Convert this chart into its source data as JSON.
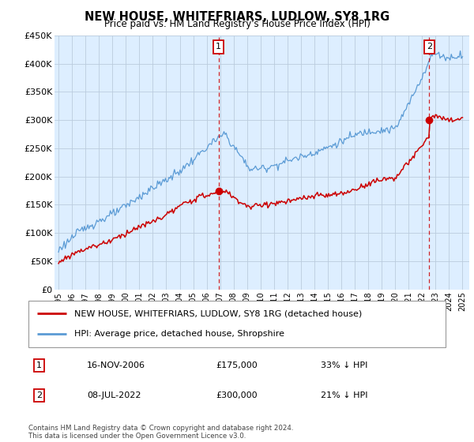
{
  "title": "NEW HOUSE, WHITEFRIARS, LUDLOW, SY8 1RG",
  "subtitle": "Price paid vs. HM Land Registry's House Price Index (HPI)",
  "legend_line1": "NEW HOUSE, WHITEFRIARS, LUDLOW, SY8 1RG (detached house)",
  "legend_line2": "HPI: Average price, detached house, Shropshire",
  "footer": "Contains HM Land Registry data © Crown copyright and database right 2024.\nThis data is licensed under the Open Government Licence v3.0.",
  "transaction1_date": "16-NOV-2006",
  "transaction1_price": "£175,000",
  "transaction1_hpi": "33% ↓ HPI",
  "transaction1_year": 2006.88,
  "transaction1_value": 175000,
  "transaction2_date": "08-JUL-2022",
  "transaction2_price": "£300,000",
  "transaction2_hpi": "21% ↓ HPI",
  "transaction2_year": 2022.52,
  "transaction2_value": 300000,
  "hpi_color": "#5b9bd5",
  "price_color": "#cc0000",
  "vline_color": "#cc0000",
  "chart_bg": "#ddeeff",
  "ylim": [
    0,
    450000
  ],
  "yticks": [
    0,
    50000,
    100000,
    150000,
    200000,
    250000,
    300000,
    350000,
    400000,
    450000
  ],
  "ytick_labels": [
    "£0",
    "£50K",
    "£100K",
    "£150K",
    "£200K",
    "£250K",
    "£300K",
    "£350K",
    "£400K",
    "£450K"
  ],
  "xlim_start": 1994.7,
  "xlim_end": 2025.5,
  "bg_color": "#ffffff",
  "grid_color": "#bbccdd"
}
